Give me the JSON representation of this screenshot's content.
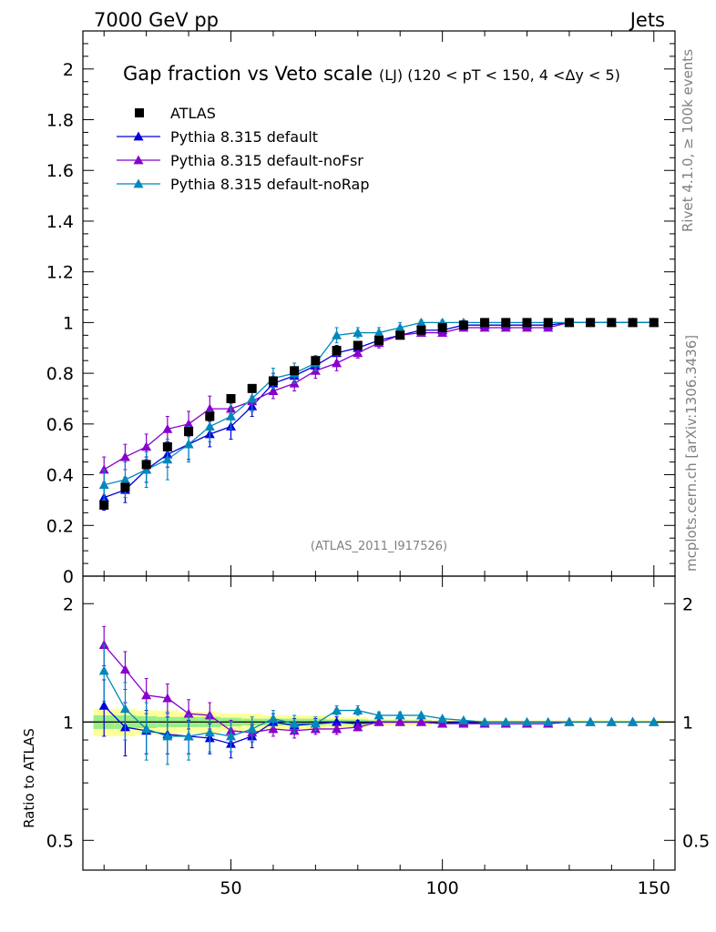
{
  "header": {
    "left": "7000 GeV pp",
    "right": "Jets"
  },
  "side": {
    "rivet": "Rivet 4.1.0, ≥ 100k events",
    "mcplots": "mcplots.cern.ch [arXiv:1306.3436]"
  },
  "chart_data": [
    {
      "type": "scatter",
      "title": "Gap fraction vs Veto scale",
      "subtitle": "(LJ) (120 < pT < 150, 4 <Δy < 5)",
      "watermark": "(ATLAS_2011_I917526)",
      "xlabel": "",
      "ylabel": "",
      "xlim": [
        15,
        155
      ],
      "ylim": [
        0,
        2.15
      ],
      "yticks": [
        0,
        0.2,
        0.4,
        0.6,
        0.8,
        1,
        1.2,
        1.4,
        1.6,
        1.8,
        2
      ],
      "ytick_labels": [
        "0",
        "0.2",
        "0.4",
        "0.6",
        "0.8",
        "1",
        "1.2",
        "1.4",
        "1.6",
        "1.8",
        "2"
      ],
      "legend_position": "top-left",
      "x": [
        20,
        25,
        30,
        35,
        40,
        45,
        50,
        55,
        60,
        65,
        70,
        75,
        80,
        85,
        90,
        95,
        100,
        105,
        110,
        115,
        120,
        125,
        130,
        135,
        140,
        145,
        150
      ],
      "series": [
        {
          "name": "ATLAS",
          "color": "#000000",
          "marker": "square",
          "values": [
            0.28,
            0.35,
            0.44,
            0.51,
            0.57,
            0.63,
            0.7,
            0.74,
            0.77,
            0.81,
            0.85,
            0.89,
            0.91,
            0.93,
            0.95,
            0.97,
            0.98,
            0.99,
            1.0,
            1.0,
            1.0,
            1.0,
            1.0,
            1.0,
            1.0,
            1.0,
            1.0
          ]
        },
        {
          "name": "Pythia 8.315 default",
          "color": "#0000dd",
          "marker": "triangle",
          "values": [
            0.31,
            0.34,
            0.42,
            0.48,
            0.52,
            0.56,
            0.59,
            0.67,
            0.76,
            0.79,
            0.83,
            0.88,
            0.9,
            0.93,
            0.95,
            0.97,
            0.97,
            0.99,
            0.99,
            0.99,
            0.99,
            0.99,
            1.0,
            1.0,
            1.0,
            1.0,
            1.0
          ],
          "errors": [
            0.05,
            0.05,
            0.05,
            0.05,
            0.06,
            0.05,
            0.05,
            0.04,
            0.04,
            0.03,
            0.03,
            0.03,
            0.02,
            0.02,
            0.01,
            0.01,
            0.01,
            0.01,
            0.01,
            0.0,
            0.0,
            0.0,
            0.0,
            0.0,
            0.0,
            0.0,
            0.0
          ]
        },
        {
          "name": "Pythia 8.315 default-noFsr",
          "color": "#8800cc",
          "marker": "triangle",
          "values": [
            0.42,
            0.47,
            0.51,
            0.58,
            0.6,
            0.66,
            0.66,
            0.69,
            0.73,
            0.76,
            0.81,
            0.84,
            0.88,
            0.92,
            0.95,
            0.96,
            0.96,
            0.98,
            0.98,
            0.98,
            0.98,
            0.98,
            1.0,
            1.0,
            1.0,
            1.0,
            1.0
          ],
          "errors": [
            0.05,
            0.05,
            0.05,
            0.05,
            0.05,
            0.05,
            0.04,
            0.04,
            0.03,
            0.03,
            0.03,
            0.03,
            0.02,
            0.02,
            0.01,
            0.01,
            0.01,
            0.01,
            0.01,
            0.0,
            0.0,
            0.0,
            0.0,
            0.0,
            0.0,
            0.0,
            0.0
          ]
        },
        {
          "name": "Pythia 8.315 default-noRap",
          "color": "#0088bb",
          "marker": "triangle",
          "values": [
            0.36,
            0.38,
            0.42,
            0.46,
            0.52,
            0.59,
            0.63,
            0.7,
            0.78,
            0.8,
            0.84,
            0.95,
            0.96,
            0.96,
            0.98,
            1.0,
            1.0,
            1.0,
            1.0,
            1.0,
            1.0,
            1.0,
            1.0,
            1.0,
            1.0,
            1.0,
            1.0
          ],
          "errors": [
            0.06,
            0.07,
            0.07,
            0.08,
            0.07,
            0.06,
            0.05,
            0.05,
            0.04,
            0.04,
            0.03,
            0.03,
            0.02,
            0.02,
            0.02,
            0.01,
            0.01,
            0.01,
            0.01,
            0.0,
            0.0,
            0.0,
            0.0,
            0.0,
            0.0,
            0.0,
            0.0
          ]
        }
      ]
    },
    {
      "type": "scatter",
      "title": "",
      "xlabel": "",
      "ylabel": "Ratio to ATLAS",
      "xlim": [
        15,
        155
      ],
      "ylim": [
        0.42,
        2.35
      ],
      "yscale": "log",
      "yticks": [
        0.5,
        1,
        2
      ],
      "ytick_labels": [
        "0.5",
        "1",
        "2"
      ],
      "xticks": [
        50,
        100,
        150
      ],
      "xtick_labels": [
        "50",
        "100",
        "150"
      ],
      "x": [
        20,
        25,
        30,
        35,
        40,
        45,
        50,
        55,
        60,
        65,
        70,
        75,
        80,
        85,
        90,
        95,
        100,
        105,
        110,
        115,
        120,
        125,
        130,
        135,
        140,
        145,
        150
      ],
      "band_outer": [
        0.08,
        0.08,
        0.07,
        0.07,
        0.06,
        0.06,
        0.05,
        0.05,
        0.04,
        0.04,
        0.04,
        0.03,
        0.03,
        0.02,
        0.02,
        0.02,
        0.01,
        0.01,
        0.01,
        0.01,
        0.01,
        0.01,
        0.01,
        0.01,
        0.01,
        0.01,
        0.01
      ],
      "band_inner": [
        0.04,
        0.04,
        0.035,
        0.03,
        0.03,
        0.03,
        0.025,
        0.02,
        0.02,
        0.02,
        0.02,
        0.015,
        0.015,
        0.01,
        0.01,
        0.01,
        0.005,
        0.005,
        0.005,
        0.005,
        0.005,
        0.005,
        0.005,
        0.005,
        0.005,
        0.005,
        0.005
      ],
      "series": [
        {
          "name": "Pythia 8.315 default",
          "color": "#0000dd",
          "values": [
            1.1,
            0.97,
            0.95,
            0.93,
            0.92,
            0.91,
            0.88,
            0.92,
            1.0,
            0.98,
            0.99,
            1.0,
            0.99,
            1.0,
            1.0,
            1.0,
            0.99,
            1.0,
            0.99,
            0.99,
            0.99,
            0.99,
            1.0,
            1.0,
            1.0,
            1.0,
            1.0
          ],
          "errors": [
            0.18,
            0.15,
            0.12,
            0.1,
            0.09,
            0.08,
            0.07,
            0.06,
            0.05,
            0.04,
            0.03,
            0.03,
            0.02,
            0.02,
            0.01,
            0.01,
            0.01,
            0.01,
            0.01,
            0.0,
            0.0,
            0.0,
            0.0,
            0.0,
            0.0,
            0.0,
            0.0
          ]
        },
        {
          "name": "Pythia 8.315 default-noFsr",
          "color": "#8800cc",
          "values": [
            1.57,
            1.36,
            1.17,
            1.15,
            1.05,
            1.04,
            0.95,
            0.94,
            0.96,
            0.95,
            0.96,
            0.96,
            0.97,
            1.0,
            1.0,
            1.0,
            0.99,
            0.99,
            0.99,
            0.99,
            0.99,
            0.99,
            1.0,
            1.0,
            1.0,
            1.0,
            1.0
          ],
          "errors": [
            0.18,
            0.15,
            0.12,
            0.1,
            0.09,
            0.08,
            0.06,
            0.05,
            0.04,
            0.04,
            0.03,
            0.03,
            0.02,
            0.02,
            0.01,
            0.01,
            0.01,
            0.01,
            0.01,
            0.0,
            0.0,
            0.0,
            0.0,
            0.0,
            0.0,
            0.0,
            0.0
          ]
        },
        {
          "name": "Pythia 8.315 default-noRap",
          "color": "#0088bb",
          "values": [
            1.35,
            1.08,
            0.96,
            0.92,
            0.92,
            0.94,
            0.92,
            0.96,
            1.02,
            0.99,
            0.99,
            1.07,
            1.07,
            1.04,
            1.04,
            1.04,
            1.02,
            1.01,
            1.0,
            1.0,
            1.0,
            1.0,
            1.0,
            1.0,
            1.0,
            1.0,
            1.0
          ],
          "errors": [
            0.22,
            0.18,
            0.16,
            0.14,
            0.12,
            0.1,
            0.08,
            0.07,
            0.05,
            0.05,
            0.04,
            0.03,
            0.03,
            0.02,
            0.02,
            0.01,
            0.01,
            0.01,
            0.01,
            0.0,
            0.0,
            0.0,
            0.0,
            0.0,
            0.0,
            0.0,
            0.0
          ]
        }
      ]
    }
  ]
}
